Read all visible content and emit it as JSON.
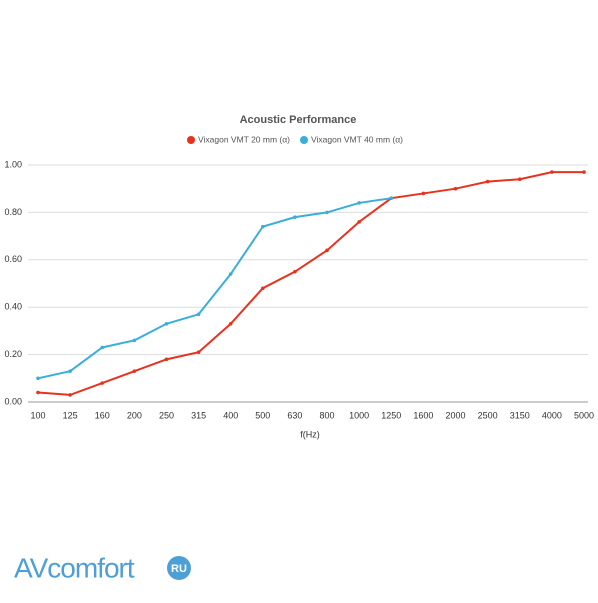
{
  "chart_data": {
    "type": "line",
    "title": "Acoustic Performance",
    "x_label": "f(Hz)",
    "categories": [
      "100",
      "125",
      "160",
      "200",
      "250",
      "315",
      "400",
      "500",
      "630",
      "800",
      "1000",
      "1250",
      "1600",
      "2000",
      "2500",
      "3150",
      "4000",
      "5000"
    ],
    "series": [
      {
        "name": "Vixagon VMT 20 mm (α)",
        "color": "#e8321e",
        "values": [
          0.04,
          0.03,
          0.08,
          0.13,
          0.18,
          0.21,
          0.33,
          0.48,
          0.55,
          0.64,
          0.76,
          0.86,
          0.88,
          0.9,
          0.93,
          0.94,
          0.97,
          0.97
        ]
      },
      {
        "name": "Vixagon VMT 40 mm (α)",
        "color": "#3aaed8",
        "values": [
          0.1,
          0.13,
          0.23,
          0.26,
          0.33,
          0.37,
          0.54,
          0.74,
          0.78,
          0.8,
          0.84,
          0.86,
          null,
          null,
          null,
          null,
          null,
          null
        ]
      }
    ],
    "ylim": [
      0,
      1
    ],
    "yticks": [
      {
        "value": 0,
        "label": "0.00"
      },
      {
        "value": 0.2,
        "label": "0.20"
      },
      {
        "value": 0.4,
        "label": "0.40"
      },
      {
        "value": 0.6,
        "label": "0.60"
      },
      {
        "value": 0.8,
        "label": "0.80"
      },
      {
        "value": 1,
        "label": "1.00"
      }
    ],
    "grid": true,
    "legend": "top"
  },
  "watermark": {
    "text": "AVcomfort",
    "badge": "RU"
  }
}
